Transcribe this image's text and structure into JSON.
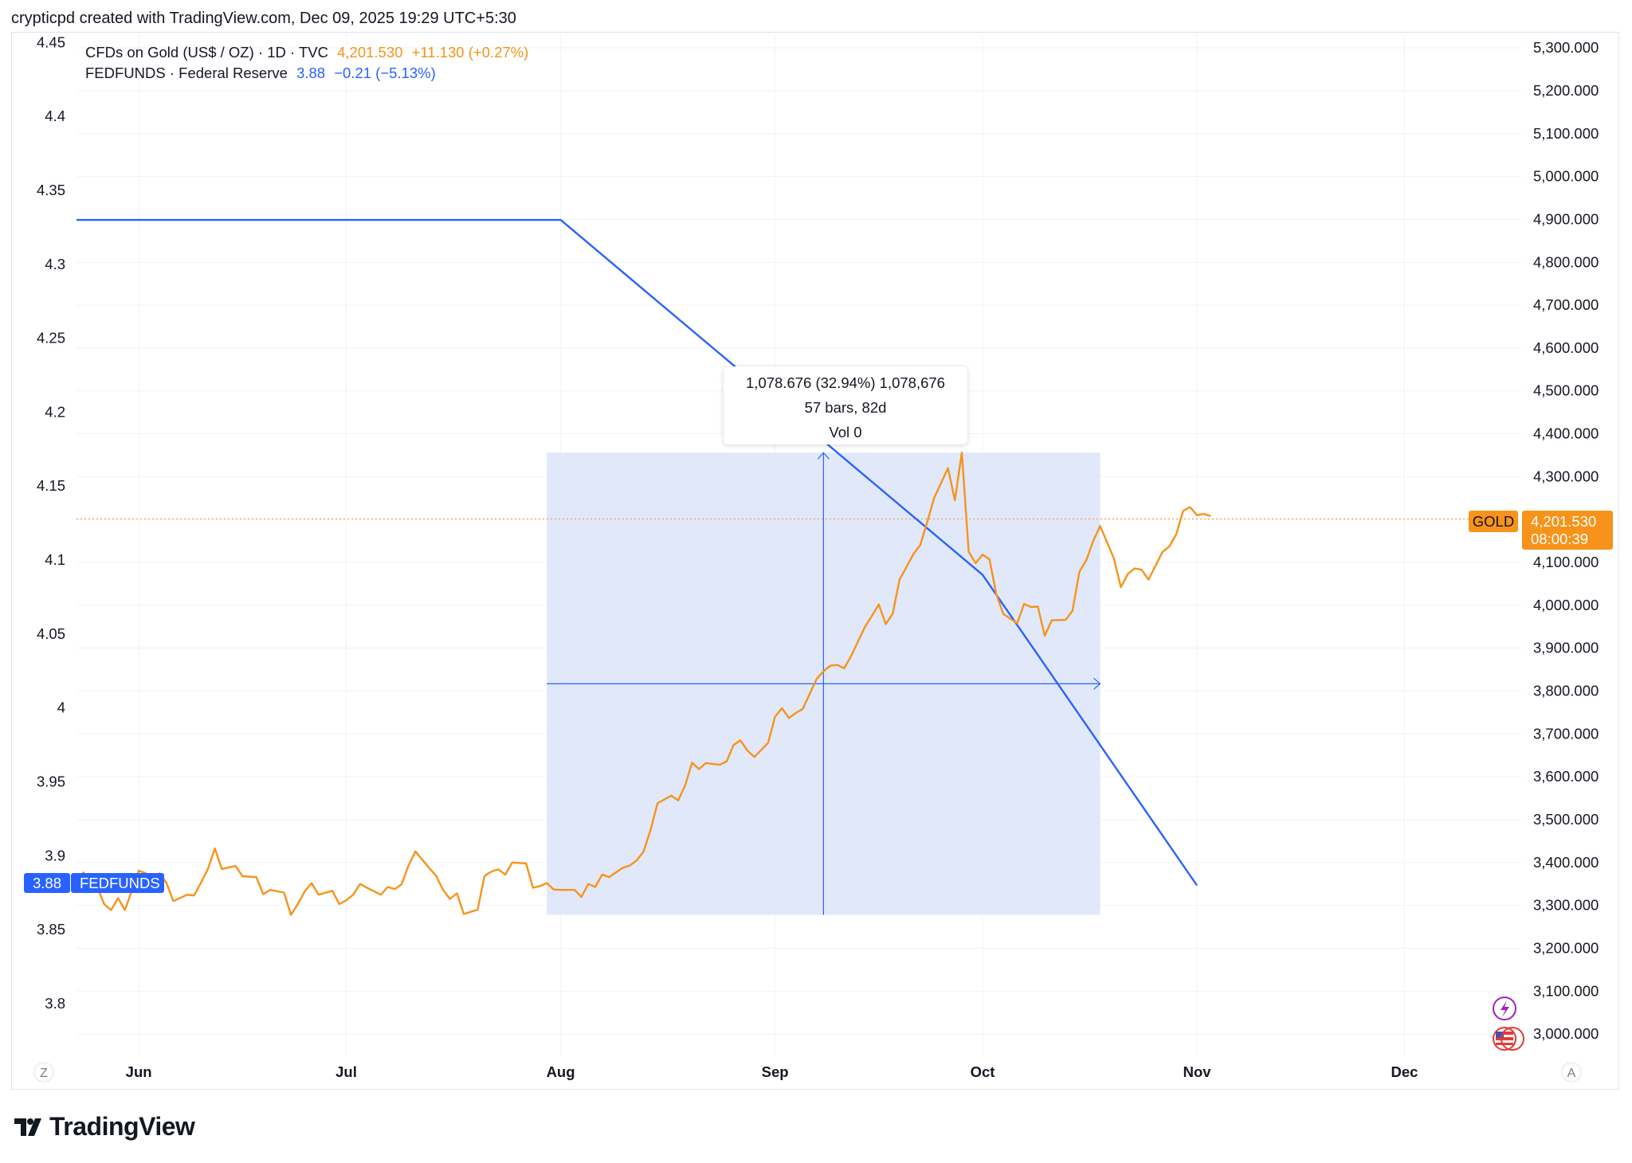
{
  "header": "crypticpd created with TradingView.com, Dec 09, 2025 19:29 UTC+5:30",
  "legend": {
    "gold": {
      "symbol": "CFDs on Gold (US$ / OZ) · 1D · TVC",
      "price": "4,201.530",
      "change": "+11.130 (+0.27%)"
    },
    "fed": {
      "symbol": "FEDFUNDS · Federal Reserve",
      "price": "3.88",
      "change": "−0.21 (−5.13%)"
    }
  },
  "tooltip": {
    "line1": "1,078.676 (32.94%) 1,078,676",
    "line2": "57 bars, 82d",
    "line3": "Vol 0"
  },
  "price_tags": {
    "fed_value": "3.88",
    "fed_name": "FEDFUNDS",
    "gold_name": "GOLD",
    "gold_value": "4,201.530",
    "gold_countdown": "08:00:39"
  },
  "axis_corners": {
    "left": "Z",
    "right": "A"
  },
  "footer": {
    "brand": "TradingView"
  },
  "colors": {
    "gold": "#f7931a",
    "fed": "#2962ff",
    "measure_fill": "#dee5fa",
    "grid": "#f0f3fa"
  },
  "chart_data": {
    "type": "line",
    "x_axis": {
      "ticks": [
        "Jun",
        "Jul",
        "Aug",
        "Sep",
        "Oct",
        "Nov",
        "Dec"
      ],
      "range": [
        "2025-05-23",
        "2025-12-18"
      ]
    },
    "left_axis": {
      "series": "FEDFUNDS",
      "ticks": [
        "4.45",
        "4.4",
        "4.35",
        "4.3",
        "4.25",
        "4.2",
        "4.15",
        "4.1",
        "4.05",
        "4",
        "3.95",
        "3.9",
        "3.85",
        "3.8"
      ],
      "range": [
        3.765,
        4.455
      ]
    },
    "right_axis": {
      "series": "Gold",
      "ticks": [
        "5,300.000",
        "5,200.000",
        "5,100.000",
        "5,000.000",
        "4,900.000",
        "4,800.000",
        "4,700.000",
        "4,600.000",
        "4,500.000",
        "4,400.000",
        "4,300.000",
        "4,200.000",
        "4,100.000",
        "4,000.000",
        "3,900.000",
        "3,800.000",
        "3,700.000",
        "3,600.000",
        "3,500.000",
        "3,400.000",
        "3,300.000",
        "3,200.000",
        "3,100.000",
        "3,000.000"
      ],
      "range": [
        2950,
        5330
      ]
    },
    "series": [
      {
        "name": "FEDFUNDS",
        "axis": "left",
        "points": [
          {
            "x": "2025-05-23",
            "y": 4.33
          },
          {
            "x": "2025-08-01",
            "y": 4.33
          },
          {
            "x": "2025-10-01",
            "y": 4.09
          },
          {
            "x": "2025-11-01",
            "y": 3.88
          }
        ]
      },
      {
        "name": "CFDs on Gold (US$ / OZ)",
        "axis": "right",
        "points": [
          {
            "x": "2025-05-23",
            "y": 3357
          },
          {
            "x": "2025-05-24",
            "y": 3377
          },
          {
            "x": "2025-05-26",
            "y": 3343
          },
          {
            "x": "2025-05-27",
            "y": 3303
          },
          {
            "x": "2025-05-28",
            "y": 3289
          },
          {
            "x": "2025-05-29",
            "y": 3317
          },
          {
            "x": "2025-05-30",
            "y": 3289
          },
          {
            "x": "2025-06-01",
            "y": 3381
          },
          {
            "x": "2025-06-02",
            "y": 3375
          },
          {
            "x": "2025-06-03",
            "y": 3352
          },
          {
            "x": "2025-06-04",
            "y": 3375
          },
          {
            "x": "2025-06-05",
            "y": 3353
          },
          {
            "x": "2025-06-06",
            "y": 3310
          },
          {
            "x": "2025-06-08",
            "y": 3325
          },
          {
            "x": "2025-06-09",
            "y": 3323
          },
          {
            "x": "2025-06-10",
            "y": 3353
          },
          {
            "x": "2025-06-11",
            "y": 3385
          },
          {
            "x": "2025-06-12",
            "y": 3433
          },
          {
            "x": "2025-06-13",
            "y": 3385
          },
          {
            "x": "2025-06-15",
            "y": 3392
          },
          {
            "x": "2025-06-16",
            "y": 3368
          },
          {
            "x": "2025-06-18",
            "y": 3366
          },
          {
            "x": "2025-06-19",
            "y": 3326
          },
          {
            "x": "2025-06-20",
            "y": 3336
          },
          {
            "x": "2025-06-22",
            "y": 3330
          },
          {
            "x": "2025-06-23",
            "y": 3278
          },
          {
            "x": "2025-06-24",
            "y": 3303
          },
          {
            "x": "2025-06-25",
            "y": 3333
          },
          {
            "x": "2025-06-26",
            "y": 3352
          },
          {
            "x": "2025-06-27",
            "y": 3325
          },
          {
            "x": "2025-06-29",
            "y": 3334
          },
          {
            "x": "2025-06-30",
            "y": 3303
          },
          {
            "x": "2025-07-01",
            "y": 3312
          },
          {
            "x": "2025-07-02",
            "y": 3325
          },
          {
            "x": "2025-07-03",
            "y": 3350
          },
          {
            "x": "2025-07-04",
            "y": 3341
          },
          {
            "x": "2025-07-06",
            "y": 3325
          },
          {
            "x": "2025-07-07",
            "y": 3343
          },
          {
            "x": "2025-07-08",
            "y": 3338
          },
          {
            "x": "2025-07-09",
            "y": 3349
          },
          {
            "x": "2025-07-10",
            "y": 3393
          },
          {
            "x": "2025-07-11",
            "y": 3426
          },
          {
            "x": "2025-07-13",
            "y": 3387
          },
          {
            "x": "2025-07-14",
            "y": 3369
          },
          {
            "x": "2025-07-15",
            "y": 3336
          },
          {
            "x": "2025-07-16",
            "y": 3315
          },
          {
            "x": "2025-07-17",
            "y": 3328
          },
          {
            "x": "2025-07-18",
            "y": 3280
          },
          {
            "x": "2025-07-20",
            "y": 3290
          },
          {
            "x": "2025-07-21",
            "y": 3369
          },
          {
            "x": "2025-07-22",
            "y": 3379
          },
          {
            "x": "2025-07-23",
            "y": 3384
          },
          {
            "x": "2025-07-24",
            "y": 3372
          },
          {
            "x": "2025-07-25",
            "y": 3400
          },
          {
            "x": "2025-07-27",
            "y": 3398
          },
          {
            "x": "2025-07-28",
            "y": 3341
          },
          {
            "x": "2025-07-29",
            "y": 3345
          },
          {
            "x": "2025-07-30",
            "y": 3352
          },
          {
            "x": "2025-07-31",
            "y": 3337
          },
          {
            "x": "2025-08-01",
            "y": 3336
          },
          {
            "x": "2025-08-03",
            "y": 3336
          },
          {
            "x": "2025-08-04",
            "y": 3320
          },
          {
            "x": "2025-08-05",
            "y": 3350
          },
          {
            "x": "2025-08-06",
            "y": 3343
          },
          {
            "x": "2025-08-07",
            "y": 3372
          },
          {
            "x": "2025-08-08",
            "y": 3366
          },
          {
            "x": "2025-08-10",
            "y": 3388
          },
          {
            "x": "2025-08-11",
            "y": 3393
          },
          {
            "x": "2025-08-12",
            "y": 3405
          },
          {
            "x": "2025-08-13",
            "y": 3426
          },
          {
            "x": "2025-08-14",
            "y": 3476
          },
          {
            "x": "2025-08-15",
            "y": 3538
          },
          {
            "x": "2025-08-17",
            "y": 3556
          },
          {
            "x": "2025-08-18",
            "y": 3545
          },
          {
            "x": "2025-08-19",
            "y": 3580
          },
          {
            "x": "2025-08-20",
            "y": 3633
          },
          {
            "x": "2025-08-21",
            "y": 3618
          },
          {
            "x": "2025-08-22",
            "y": 3632
          },
          {
            "x": "2025-08-24",
            "y": 3628
          },
          {
            "x": "2025-08-25",
            "y": 3636
          },
          {
            "x": "2025-08-26",
            "y": 3674
          },
          {
            "x": "2025-08-27",
            "y": 3685
          },
          {
            "x": "2025-08-28",
            "y": 3661
          },
          {
            "x": "2025-08-29",
            "y": 3646
          },
          {
            "x": "2025-08-31",
            "y": 3679
          },
          {
            "x": "2025-09-01",
            "y": 3740
          },
          {
            "x": "2025-09-02",
            "y": 3760
          },
          {
            "x": "2025-09-03",
            "y": 3737
          },
          {
            "x": "2025-09-04",
            "y": 3749
          },
          {
            "x": "2025-09-05",
            "y": 3758
          },
          {
            "x": "2025-09-07",
            "y": 3828
          },
          {
            "x": "2025-09-08",
            "y": 3846
          },
          {
            "x": "2025-09-09",
            "y": 3859
          },
          {
            "x": "2025-09-10",
            "y": 3861
          },
          {
            "x": "2025-09-11",
            "y": 3853
          },
          {
            "x": "2025-09-12",
            "y": 3882
          },
          {
            "x": "2025-09-14",
            "y": 3950
          },
          {
            "x": "2025-09-15",
            "y": 3975
          },
          {
            "x": "2025-09-16",
            "y": 4002
          },
          {
            "x": "2025-09-17",
            "y": 3956
          },
          {
            "x": "2025-09-18",
            "y": 3980
          },
          {
            "x": "2025-09-19",
            "y": 4060
          },
          {
            "x": "2025-09-21",
            "y": 4119
          },
          {
            "x": "2025-09-22",
            "y": 4141
          },
          {
            "x": "2025-09-23",
            "y": 4194
          },
          {
            "x": "2025-09-24",
            "y": 4250
          },
          {
            "x": "2025-09-26",
            "y": 4320
          },
          {
            "x": "2025-09-27",
            "y": 4245
          },
          {
            "x": "2025-09-28",
            "y": 4356
          },
          {
            "x": "2025-09-29",
            "y": 4125
          },
          {
            "x": "2025-09-30",
            "y": 4098
          },
          {
            "x": "2025-10-01",
            "y": 4118
          },
          {
            "x": "2025-10-02",
            "y": 4107
          },
          {
            "x": "2025-10-03",
            "y": 4025
          },
          {
            "x": "2025-10-04",
            "y": 3980
          },
          {
            "x": "2025-10-06",
            "y": 3958
          },
          {
            "x": "2025-10-07",
            "y": 4003
          },
          {
            "x": "2025-10-08",
            "y": 3996
          },
          {
            "x": "2025-10-09",
            "y": 3997
          },
          {
            "x": "2025-10-10",
            "y": 3929
          },
          {
            "x": "2025-10-11",
            "y": 3965
          },
          {
            "x": "2025-10-13",
            "y": 3966
          },
          {
            "x": "2025-10-14",
            "y": 3987
          },
          {
            "x": "2025-10-15",
            "y": 4078
          },
          {
            "x": "2025-10-16",
            "y": 4105
          },
          {
            "x": "2025-10-17",
            "y": 4150
          },
          {
            "x": "2025-10-18",
            "y": 4185
          },
          {
            "x": "2025-10-20",
            "y": 4109
          },
          {
            "x": "2025-10-21",
            "y": 4042
          },
          {
            "x": "2025-10-22",
            "y": 4073
          },
          {
            "x": "2025-10-23",
            "y": 4086
          },
          {
            "x": "2025-10-24",
            "y": 4083
          },
          {
            "x": "2025-10-25",
            "y": 4060
          },
          {
            "x": "2025-10-27",
            "y": 4124
          },
          {
            "x": "2025-10-28",
            "y": 4137
          },
          {
            "x": "2025-10-29",
            "y": 4165
          },
          {
            "x": "2025-10-30",
            "y": 4220
          },
          {
            "x": "2025-10-31",
            "y": 4229
          },
          {
            "x": "2025-11-01",
            "y": 4210
          },
          {
            "x": "2025-11-02",
            "y": 4213
          },
          {
            "x": "2025-11-03",
            "y": 4208
          }
        ]
      }
    ],
    "current_price_line": {
      "series": "Gold",
      "value": 4201.53
    },
    "measure_tool": {
      "x_start": "2025-07-30",
      "x_end": "2025-10-18",
      "y_low": 3278,
      "y_high": 4356
    },
    "grid": true
  }
}
